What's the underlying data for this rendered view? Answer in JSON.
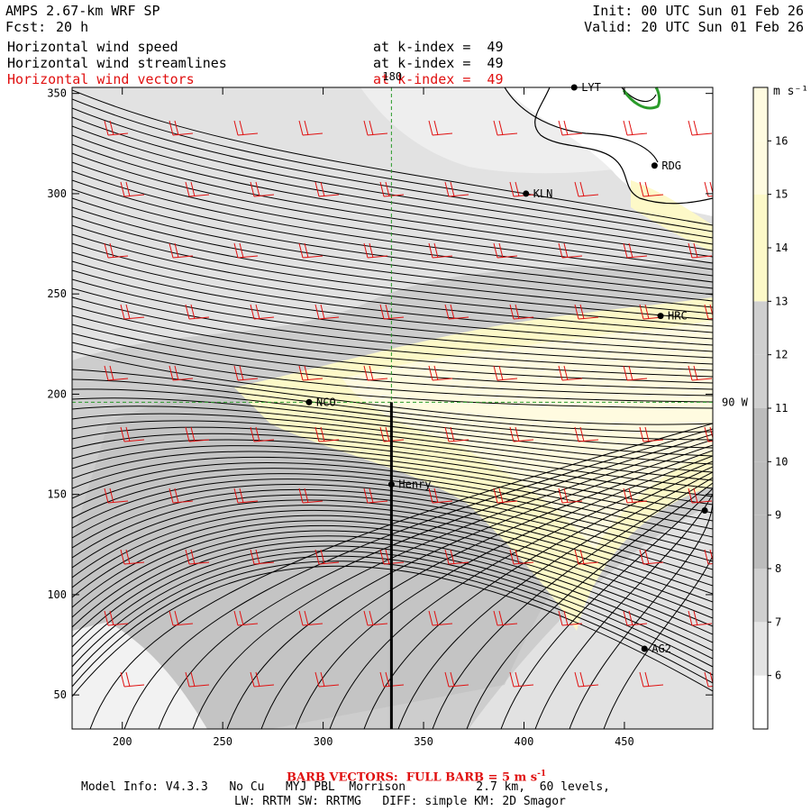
{
  "header": {
    "model_title": "AMPS 2.67-km WRF SP",
    "fcst_label": "Fcst:",
    "fcst_hours": "20 h",
    "init": "Init: 00 UTC Sun 01 Feb 26",
    "valid": "Valid: 20 UTC Sun 01 Feb 26"
  },
  "fields": [
    {
      "name": "Horizontal wind speed",
      "level": "at k-index =  49",
      "color": "#000000"
    },
    {
      "name": "Horizontal wind streamlines",
      "level": "at k-index =  49",
      "color": "#000000"
    },
    {
      "name": "Horizontal wind vectors",
      "level": "at k-index =  49",
      "color": "#e01010"
    }
  ],
  "axes": {
    "x_ticks": [
      "200",
      "250",
      "300",
      "350",
      "400",
      "450"
    ],
    "x_tick_values": [
      200,
      250,
      300,
      350,
      400,
      450
    ],
    "y_ticks": [
      "350",
      "300",
      "250",
      "200",
      "150",
      "100",
      "50"
    ],
    "y_tick_values": [
      350,
      300,
      250,
      200,
      150,
      100,
      50
    ],
    "x_range": [
      175,
      494
    ],
    "y_range": [
      33,
      353
    ]
  },
  "reference_lines": {
    "meridian_label": "180",
    "meridian_x": 334,
    "parallel_label": "90 W",
    "parallel_y": 196
  },
  "stations": [
    {
      "id": "LYT",
      "x": 425,
      "y": 353
    },
    {
      "id": "RDG",
      "x": 465,
      "y": 314
    },
    {
      "id": "KLN",
      "x": 401,
      "y": 300
    },
    {
      "id": "HRC",
      "x": 468,
      "y": 239
    },
    {
      "id": "NCO",
      "x": 293,
      "y": 196
    },
    {
      "id": "Henry",
      "x": 334,
      "y": 155
    },
    {
      "id": "",
      "x": 490,
      "y": 142
    },
    {
      "id": "AG2",
      "x": 460,
      "y": 73
    }
  ],
  "colorbar": {
    "units": "m s⁻¹",
    "labels": [
      "16",
      "15",
      "14",
      "13",
      "12",
      "11",
      "10",
      "9",
      "8",
      "7",
      "6"
    ],
    "label_values": [
      16,
      15,
      14,
      13,
      12,
      11,
      10,
      9,
      8,
      7,
      6
    ],
    "min": 5,
    "max": 17,
    "colors": {
      "lowest": "#ffffff",
      "light_gray": "#e4e4e4",
      "mid_gray": "#cfcfcf",
      "dark_gray": "#bcbcbc",
      "pale_yellow": "#fffbe0",
      "yellow": "#fdf9c8"
    }
  },
  "footer": {
    "barb_note": "BARB VECTORS:  FULL BARB = 5 m s",
    "barb_exp": "-1",
    "model_info": "Model Info: V4.3.3   No Cu   MYJ PBL  Morrison          2.7 km,  60 levels,",
    "physics": "LW: RRTM SW: RRTMG   DIFF: simple KM: 2D Smagor"
  }
}
